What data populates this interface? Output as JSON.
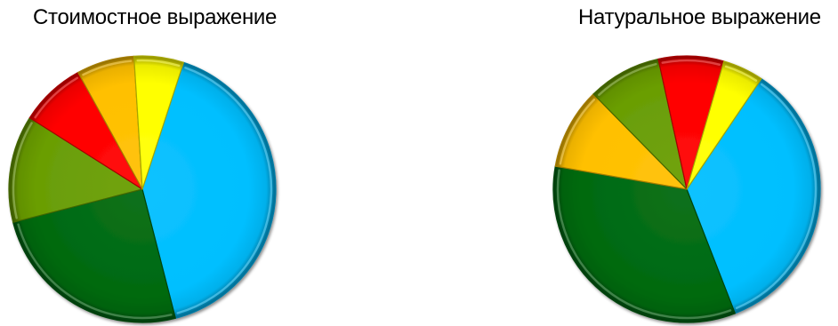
{
  "chart_data": [
    {
      "type": "pie",
      "title": "Стоимостное выражение",
      "start_angle_deg": 72,
      "slices": [
        {
          "value": 41,
          "color": "#00BFFF"
        },
        {
          "value": 25,
          "color": "#006A10"
        },
        {
          "value": 13,
          "color": "#6A9E05"
        },
        {
          "value": 8,
          "color": "#FF0000"
        },
        {
          "value": 7,
          "color": "#FFC000"
        },
        {
          "value": 6,
          "color": "#FFFF00"
        }
      ],
      "legend": "none"
    },
    {
      "type": "pie",
      "title": "Натуральное выражение",
      "start_angle_deg": 56,
      "slices": [
        {
          "value": 35,
          "color": "#00BFFF"
        },
        {
          "value": 34,
          "color": "#006A10"
        },
        {
          "value": 10,
          "color": "#FFC000"
        },
        {
          "value": 9,
          "color": "#6A9E05"
        },
        {
          "value": 8,
          "color": "#FF0000"
        },
        {
          "value": 5,
          "color": "#FFFF00"
        }
      ],
      "legend": "none"
    }
  ]
}
